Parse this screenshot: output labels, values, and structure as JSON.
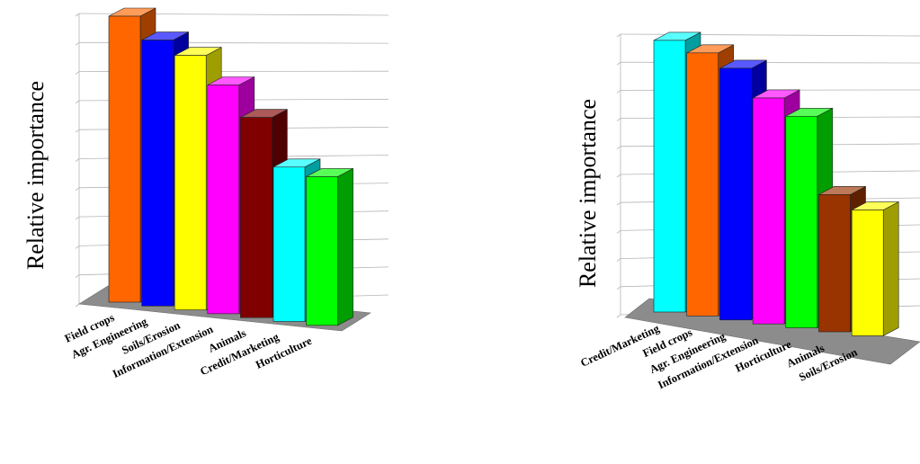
{
  "chart_data": [
    {
      "type": "bar",
      "style": "3d",
      "grid": true,
      "title": "",
      "xlabel": "",
      "ylabel": "Relative importance",
      "ylim": [
        0,
        1
      ],
      "categories": [
        "Field crops",
        "Agr. Engineering",
        "Soils/Erosion",
        "Information/Extension",
        "Animals",
        "Credit/Marketing",
        "Horticulture"
      ],
      "values": [
        1.0,
        0.93,
        0.89,
        0.8,
        0.7,
        0.54,
        0.52
      ],
      "colors": [
        "#ff6600",
        "#0000ff",
        "#ffff00",
        "#ff00ff",
        "#800000",
        "#00ffff",
        "#00ff00"
      ]
    },
    {
      "type": "bar",
      "style": "3d",
      "grid": true,
      "title": "",
      "xlabel": "",
      "ylabel": "Relative importance",
      "ylim": [
        0,
        1
      ],
      "categories": [
        "Credit/Marketing",
        "Field crops",
        "Agr. Engineering",
        "Information/Extension",
        "Horticulture",
        "Animals",
        "Soils/Erosion"
      ],
      "values": [
        0.95,
        0.92,
        0.88,
        0.79,
        0.74,
        0.48,
        0.44
      ],
      "colors": [
        "#00ffff",
        "#ff6600",
        "#0000ff",
        "#ff00ff",
        "#00ff00",
        "#993300",
        "#ffff00"
      ]
    }
  ]
}
